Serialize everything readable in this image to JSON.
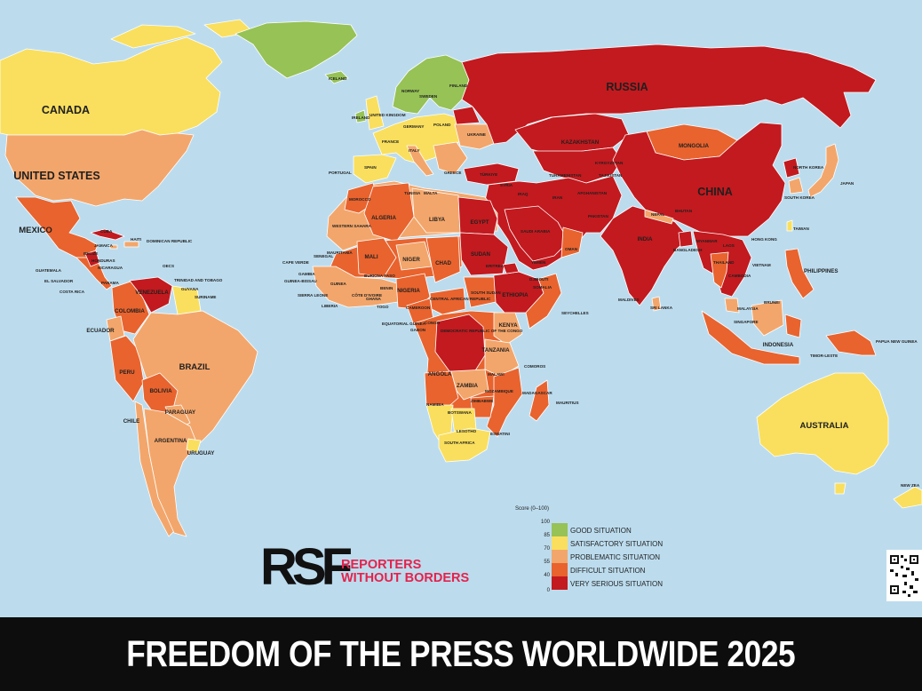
{
  "map": {
    "colors": {
      "ocean": "#bcdcee",
      "good": "#96c256",
      "satisfactory": "#f9df5d",
      "problematic": "#f3a66b",
      "difficult": "#e8632e",
      "very_serious": "#c21a1f"
    },
    "labels": {
      "canada": "CANADA",
      "united_states": "UNITED STATES",
      "mexico": "MEXICO",
      "cuba": "CUBA",
      "haiti": "HAITI",
      "jamaica": "JAMAICA",
      "dominican_republic": "DOMINICAN REPUBLIC",
      "belize": "BELIZE",
      "honduras": "HONDURAS",
      "guatemala": "GUATEMALA",
      "el_salvador": "EL SALVADOR",
      "nicaragua": "NICARAGUA",
      "costa_rica": "COSTA RICA",
      "panama": "PANAMA",
      "oecs": "OECS",
      "trinidad_and_tobago": "TRINIDAD AND TOBAGO",
      "guyana": "GUYANA",
      "suriname": "SURINAME",
      "venezuela": "VENEZUELA",
      "colombia": "COLOMBIA",
      "ecuador": "ECUADOR",
      "peru": "PERU",
      "brazil": "BRAZIL",
      "bolivia": "BOLIVIA",
      "paraguay": "PARAGUAY",
      "chile": "CHILE",
      "argentina": "ARGENTINA",
      "uruguay": "URUGUAY",
      "iceland": "ICELAND",
      "norway": "NORWAY",
      "sweden": "SWEDEN",
      "finland": "FINLAND",
      "ireland": "IRELAND",
      "united_kingdom": "UNITED KINGDOM",
      "france": "FRANCE",
      "spain": "SPAIN",
      "portugal": "PORTUGAL",
      "germany": "GERMANY",
      "poland": "POLAND",
      "italy": "ITALY",
      "ukraine": "UKRAINE",
      "greece": "GREECE",
      "turkiye": "TÜRKIYE",
      "russia": "RUSSIA",
      "kazakhstan": "KAZAKHSTAN",
      "mongolia": "MONGOLIA",
      "china": "CHINA",
      "north_korea": "NORTH KOREA",
      "south_korea": "SOUTH KOREA",
      "japan": "JAPAN",
      "taiwan": "TAIWAN",
      "hong_kong": "HONG KONG",
      "kyrgyzstan": "KYRGYZSTAN",
      "turkmenistan": "TURKMENISTAN",
      "tajikistan": "TAJIKISTAN",
      "afghanistan": "AFGHANISTAN",
      "pakistan": "PAKISTAN",
      "iran": "IRAN",
      "iraq": "IRAQ",
      "syria": "SYRIA",
      "saudi_arabia": "SAUDI ARABIA",
      "yemen": "YEMEN",
      "oman": "OMAN",
      "india": "INDIA",
      "nepal": "NEPAL",
      "bhutan": "BHUTAN",
      "bangladesh": "BANGLADESH",
      "myanmar": "MYANMAR",
      "laos": "LAOS",
      "thailand": "THAILAND",
      "vietnam": "VIETNAM",
      "cambodia": "CAMBODIA",
      "philippines": "PHILIPPINES",
      "malaysia": "MALAYSIA",
      "brunei": "BRUNEI",
      "singapore": "SINGAPORE",
      "indonesia": "INDONESIA",
      "timor_leste": "TIMOR-LESTE",
      "papua_new_guinea": "PAPUA NEW GUINEA",
      "australia": "AUSTRALIA",
      "new_zealand": "NEW ZEA",
      "maldives": "MALDIVES",
      "sri_lanka": "SRI LANKA",
      "seychelles": "SEYCHELLES",
      "morocco": "MOROCCO",
      "tunisia": "TUNISIA",
      "malta": "MALTA",
      "algeria": "ALGERIA",
      "libya": "LIBYA",
      "egypt": "EGYPT",
      "western_sahara": "WESTERN SAHARA",
      "mauritania": "MAURITANIA",
      "mali": "MALI",
      "niger": "NIGER",
      "chad": "CHAD",
      "sudan": "SUDAN",
      "eritrea": "ERITREA",
      "djibouti": "DJIBOUTI",
      "ethiopia": "ETHIOPIA",
      "somalia": "SOMALIA",
      "south_sudan": "SOUTH SUDAN",
      "senegal": "SENEGAL",
      "cape_verde": "CAPE VERDE",
      "gambia": "GAMBIA",
      "guinea_bissau": "GUINEA-BISSAU",
      "guinea": "GUINEA",
      "sierra_leone": "SIERRA LEONE",
      "liberia": "LIBERIA",
      "cote_divoire": "CÔTE D'IVOIRE",
      "burkina_faso": "BURKINA FASO",
      "ghana": "GHANA",
      "togo": "TOGO",
      "benin": "BENIN",
      "nigeria": "NIGERIA",
      "cameroon": "CAMEROON",
      "central_african_republic": "CENTRAL AFRICAN REPUBLIC",
      "equatorial_guinea": "EQUATORIAL GUINEA",
      "gabon": "GABON",
      "congo": "CONGO",
      "drc": "DEMOCRATIC REPUBLIC OF THE CONGO",
      "kenya": "KENYA",
      "tanzania": "TANZANIA",
      "angola": "ANGOLA",
      "zambia": "ZAMBIA",
      "malawi": "MALAWI",
      "mozambique": "MOZAMBIQUE",
      "zimbabwe": "ZIMBABWE",
      "namibia": "NAMIBIA",
      "botswana": "BOTSWANA",
      "comoros": "COMOROS",
      "madagascar": "MADAGASCAR",
      "mauritius": "MAURITIUS",
      "lesotho": "LESOTHO",
      "eswatini": "ESWATINI",
      "south_africa": "SOUTH AFRICA"
    }
  },
  "brand": {
    "logo_text": "RSF",
    "name_line1": "REPORTERS",
    "name_line2": "WITHOUT BORDERS",
    "accent": "#e5224c"
  },
  "legend": {
    "title": "Score (0–100)",
    "ticks": [
      "100",
      "85",
      "70",
      "55",
      "40",
      "0"
    ],
    "items": [
      {
        "label": "GOOD SITUATION",
        "color": "#96c256"
      },
      {
        "label": "SATISFACTORY SITUATION",
        "color": "#f9df5d"
      },
      {
        "label": "PROBLEMATIC SITUATION",
        "color": "#f3a66b"
      },
      {
        "label": "DIFFICULT SITUATION",
        "color": "#e8632e"
      },
      {
        "label": "VERY SERIOUS SITUATION",
        "color": "#c21a1f"
      }
    ]
  },
  "footer": {
    "title": "FREEDOM OF THE PRESS WORLDWIDE 2025"
  }
}
